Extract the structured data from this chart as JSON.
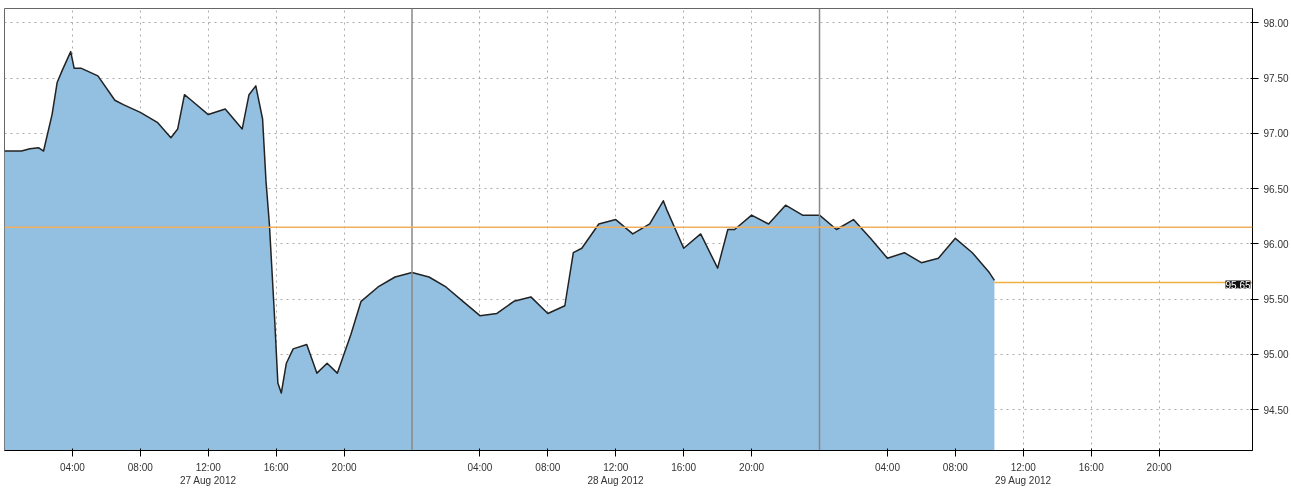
{
  "chart_data": {
    "type": "area",
    "x": [
      "2012-08-27T00:00",
      "2012-08-27T01:00",
      "2012-08-27T01:30",
      "2012-08-27T02:00",
      "2012-08-27T02:18",
      "2012-08-27T02:48",
      "2012-08-27T03:06",
      "2012-08-27T03:24",
      "2012-08-27T03:54",
      "2012-08-27T04:06",
      "2012-08-27T04:30",
      "2012-08-27T05:30",
      "2012-08-27T06:30",
      "2012-08-27T07:00",
      "2012-08-27T08:00",
      "2012-08-27T09:00",
      "2012-08-27T09:48",
      "2012-08-27T10:12",
      "2012-08-27T10:36",
      "2012-08-27T11:00",
      "2012-08-27T12:00",
      "2012-08-27T13:00",
      "2012-08-27T14:00",
      "2012-08-27T14:24",
      "2012-08-27T14:48",
      "2012-08-27T15:12",
      "2012-08-27T15:24",
      "2012-08-27T15:36",
      "2012-08-27T15:54",
      "2012-08-27T16:06",
      "2012-08-27T16:18",
      "2012-08-27T16:36",
      "2012-08-27T17:00",
      "2012-08-27T17:48",
      "2012-08-27T18:24",
      "2012-08-27T19:00",
      "2012-08-27T19:36",
      "2012-08-27T20:24",
      "2012-08-27T21:00",
      "2012-08-27T22:00",
      "2012-08-27T23:00",
      "2012-08-28T00:00",
      "2012-08-28T01:00",
      "2012-08-28T02:00",
      "2012-08-28T03:00",
      "2012-08-28T04:00",
      "2012-08-28T05:00",
      "2012-08-28T06:00",
      "2012-08-28T07:00",
      "2012-08-28T08:00",
      "2012-08-28T09:00",
      "2012-08-28T09:30",
      "2012-08-28T10:00",
      "2012-08-28T11:00",
      "2012-08-28T12:00",
      "2012-08-28T13:00",
      "2012-08-28T14:00",
      "2012-08-28T14:48",
      "2012-08-28T15:00",
      "2012-08-28T16:00",
      "2012-08-28T17:00",
      "2012-08-28T18:00",
      "2012-08-28T18:36",
      "2012-08-28T19:00",
      "2012-08-28T20:00",
      "2012-08-28T21:00",
      "2012-08-28T22:00",
      "2012-08-28T23:00",
      "2012-08-29T00:00",
      "2012-08-29T01:00",
      "2012-08-29T02:00",
      "2012-08-29T03:00",
      "2012-08-29T04:00",
      "2012-08-29T05:00",
      "2012-08-29T06:00",
      "2012-08-29T07:00",
      "2012-08-29T08:00",
      "2012-08-29T09:00",
      "2012-08-29T10:00",
      "2012-08-29T10:18"
    ],
    "series": [
      {
        "color": "#93bfe0",
        "values": [
          96.84,
          96.84,
          96.86,
          96.87,
          96.84,
          97.17,
          97.46,
          97.57,
          97.74,
          97.59,
          97.59,
          97.52,
          97.3,
          97.26,
          97.19,
          97.1,
          96.96,
          97.04,
          97.35,
          97.3,
          97.17,
          97.22,
          97.04,
          97.35,
          97.43,
          97.13,
          96.57,
          96.18,
          95.35,
          94.74,
          94.65,
          94.92,
          95.05,
          95.09,
          94.83,
          94.92,
          94.83,
          95.18,
          95.48,
          95.61,
          95.7,
          95.74,
          95.7,
          95.61,
          95.48,
          95.35,
          95.37,
          95.48,
          95.52,
          95.37,
          95.44,
          95.92,
          95.96,
          96.18,
          96.22,
          96.09,
          96.18,
          96.39,
          96.31,
          95.96,
          96.09,
          95.78,
          96.13,
          96.13,
          96.26,
          96.18,
          96.35,
          96.26,
          96.26,
          96.13,
          96.22,
          96.05,
          95.87,
          95.92,
          95.83,
          95.87,
          96.05,
          95.92,
          95.74,
          95.67
        ]
      }
    ],
    "xlim": [
      "2012-08-27T00:00",
      "2012-08-30T01:30"
    ],
    "xticks": [
      {
        "value": "2012-08-27T04:00",
        "label": "04:00"
      },
      {
        "value": "2012-08-27T08:00",
        "label": "08:00"
      },
      {
        "value": "2012-08-27T12:00",
        "label": "12:00\n27 Aug 2012"
      },
      {
        "value": "2012-08-27T16:00",
        "label": "16:00"
      },
      {
        "value": "2012-08-27T20:00",
        "label": "20:00"
      },
      {
        "value": "2012-08-28T04:00",
        "label": "04:00"
      },
      {
        "value": "2012-08-28T08:00",
        "label": "08:00"
      },
      {
        "value": "2012-08-28T12:00",
        "label": "12:00\n28 Aug 2012"
      },
      {
        "value": "2012-08-28T16:00",
        "label": "16:00"
      },
      {
        "value": "2012-08-28T20:00",
        "label": "20:00"
      },
      {
        "value": "2012-08-29T04:00",
        "label": "04:00"
      },
      {
        "value": "2012-08-29T08:00",
        "label": "08:00"
      },
      {
        "value": "2012-08-29T12:00",
        "label": "12:00\n29 Aug 2012"
      },
      {
        "value": "2012-08-29T16:00",
        "label": "16:00"
      },
      {
        "value": "2012-08-29T20:00",
        "label": "20:00"
      }
    ],
    "ylim": [
      94.13,
      98.13
    ],
    "yticks": [
      {
        "value": 94.5,
        "label": "94.50"
      },
      {
        "value": 95.0,
        "label": "95.00"
      },
      {
        "value": 95.5,
        "label": "95.50"
      },
      {
        "value": 96.0,
        "label": "96.00"
      },
      {
        "value": 96.5,
        "label": "96.50"
      },
      {
        "value": 97.0,
        "label": "97.00"
      },
      {
        "value": 97.5,
        "label": "97.50"
      },
      {
        "value": 98.0,
        "label": "98.00"
      }
    ],
    "ref_lines": [
      {
        "axis": "y",
        "value": 96.15,
        "color": "#f0b060"
      },
      {
        "axis": "y",
        "value": 95.65,
        "label": "95.65",
        "color": "#f0b040"
      },
      {
        "axis": "x",
        "value": "2012-08-28T00:00",
        "color": "#888888"
      },
      {
        "axis": "x",
        "value": "2012-08-29T00:00",
        "color": "#888888"
      }
    ],
    "grid": true
  }
}
